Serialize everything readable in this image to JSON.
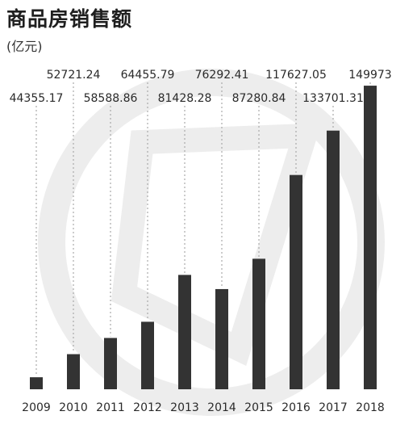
{
  "header": {
    "title": "商品房销售额",
    "unit": "(亿元)"
  },
  "colors": {
    "bar": "#333333",
    "leader": "#9a9a9a",
    "watermark": "#ededed"
  },
  "chart_data": {
    "type": "bar",
    "title": "商品房销售额",
    "ylabel": "(亿元)",
    "categories": [
      "2009",
      "2010",
      "2011",
      "2012",
      "2013",
      "2014",
      "2015",
      "2016",
      "2017",
      "2018"
    ],
    "values": [
      44355.17,
      52721.24,
      58588.86,
      64455.79,
      81428.28,
      76292.41,
      87280.84,
      117627.05,
      133701.31,
      149973
    ],
    "value_labels": [
      "44355.17",
      "52721.24",
      "58588.86",
      "64455.79",
      "81428.28",
      "76292.41",
      "87280.84",
      "117627.05",
      "133701.31",
      "149973"
    ],
    "ylim": [
      40000,
      150000
    ],
    "grid": false,
    "legend": "none"
  }
}
